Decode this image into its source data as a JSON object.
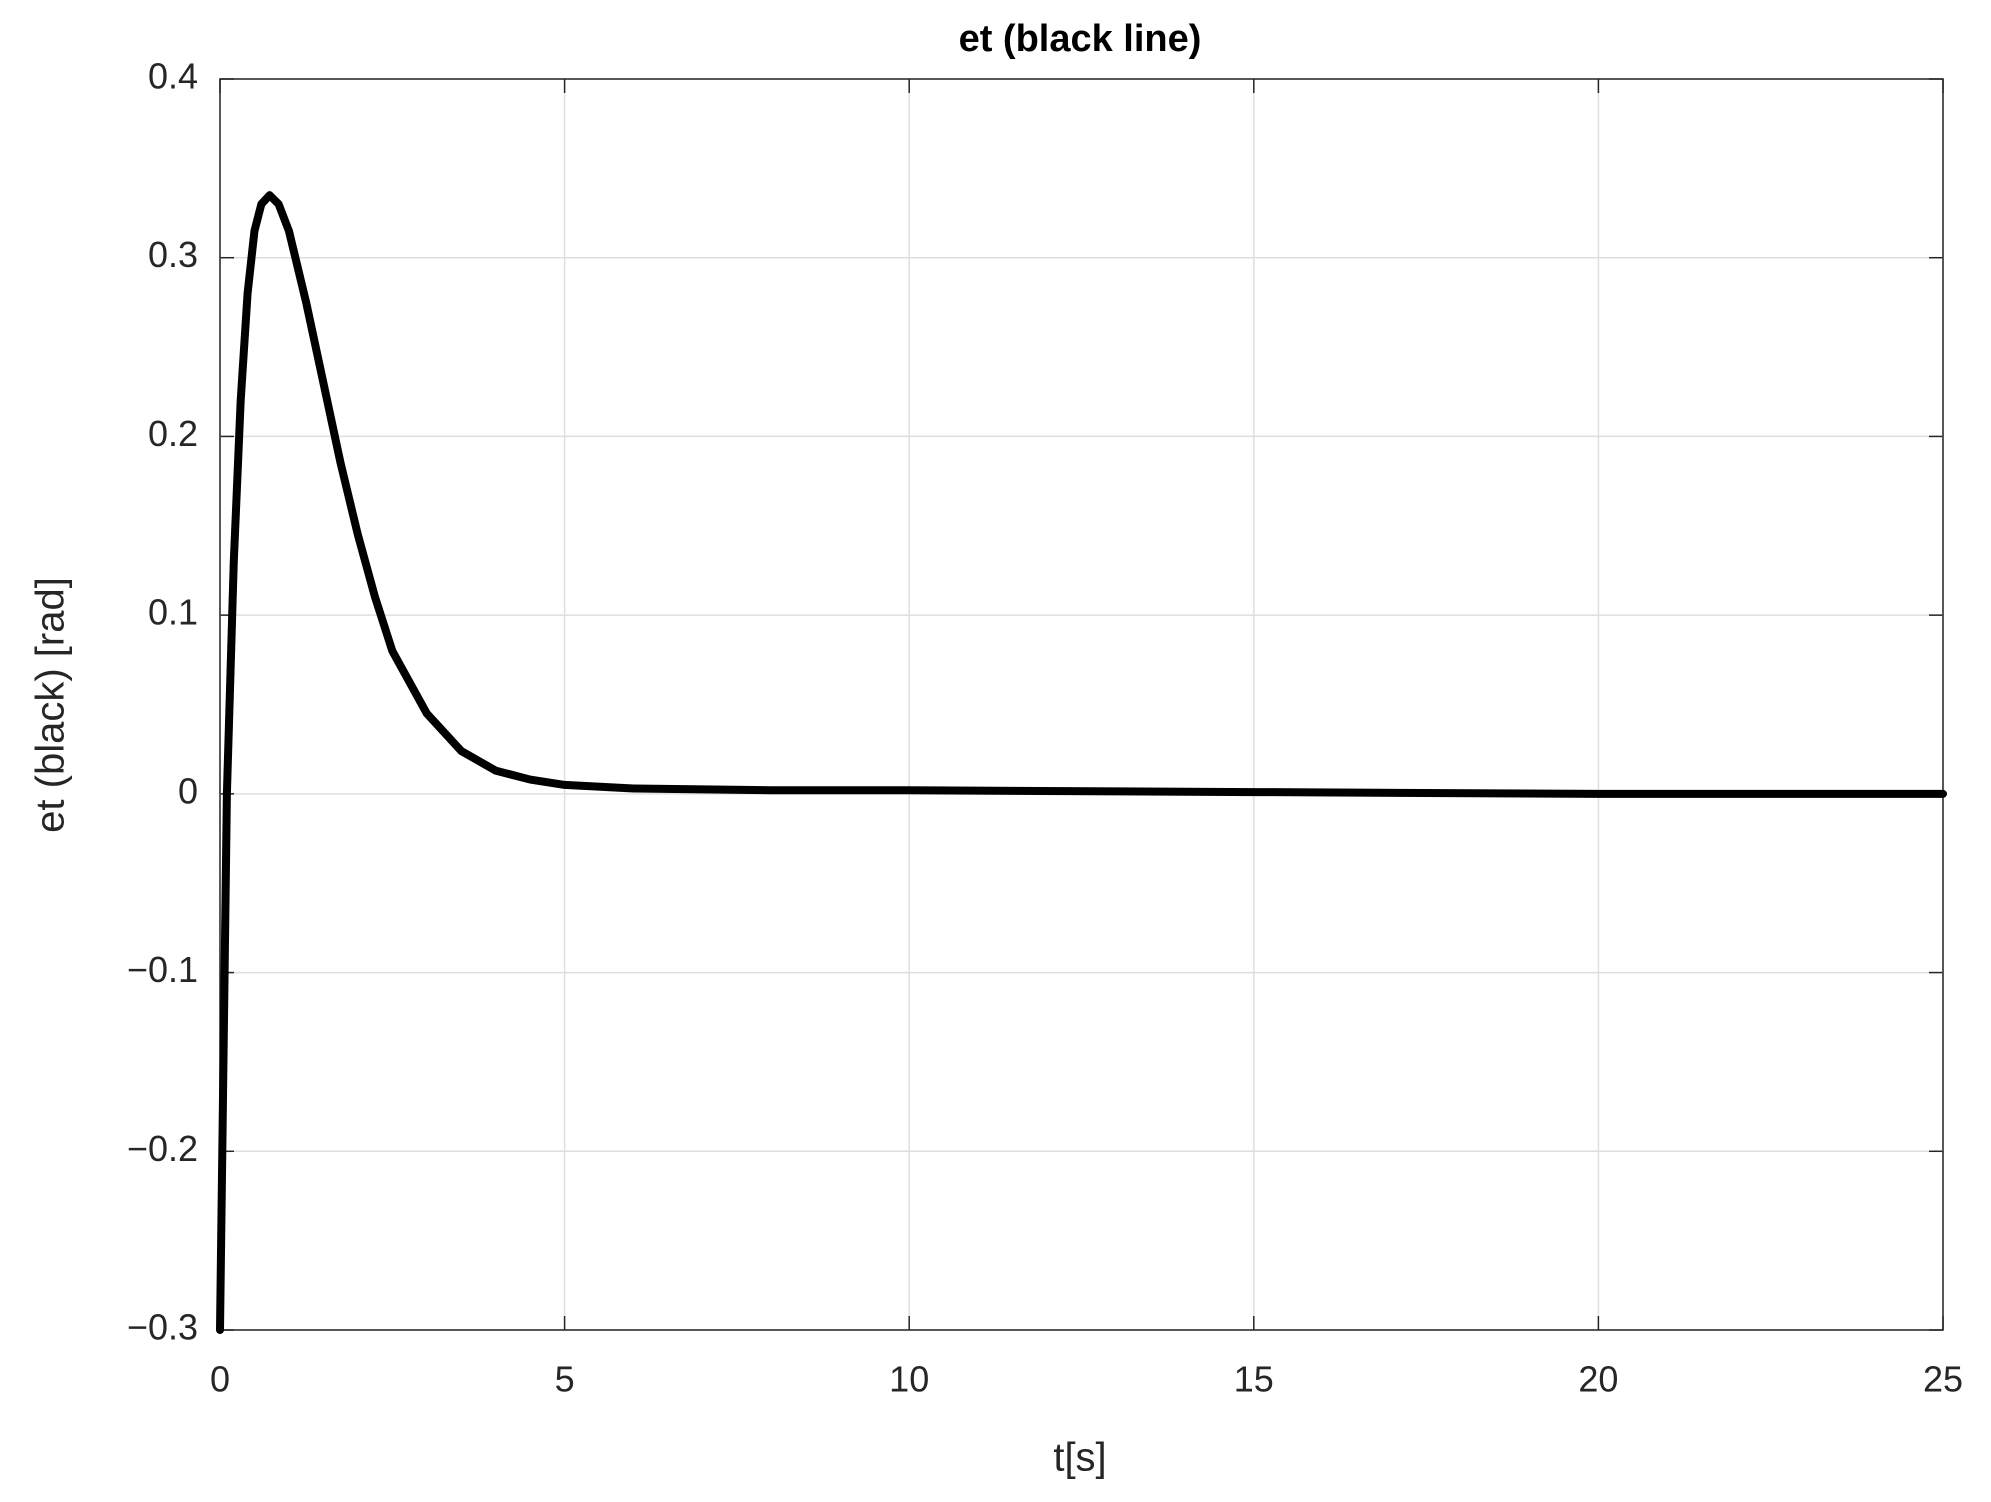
{
  "chart_data": {
    "type": "line",
    "title": "et (black line)",
    "x_label": "t[s]",
    "y_label": "et (black)  [rad]",
    "x": [
      0,
      0.05,
      0.1,
      0.2,
      0.3,
      0.4,
      0.5,
      0.6,
      0.72,
      0.85,
      1.0,
      1.25,
      1.5,
      1.75,
      2.0,
      2.25,
      2.5,
      3.0,
      3.5,
      4.0,
      4.5,
      5,
      6,
      8,
      10,
      15,
      20,
      25
    ],
    "series": [
      {
        "name": "et",
        "color": "#000000",
        "values": [
          -0.3,
          -0.15,
          0,
          0.13,
          0.22,
          0.28,
          0.315,
          0.33,
          0.335,
          0.33,
          0.315,
          0.275,
          0.23,
          0.185,
          0.145,
          0.11,
          0.08,
          0.045,
          0.024,
          0.013,
          0.008,
          0.005,
          0.003,
          0.002,
          0.002,
          0.001,
          0,
          0
        ]
      }
    ],
    "xlim": [
      0,
      25
    ],
    "xticks": [
      0,
      5,
      10,
      15,
      20,
      25
    ],
    "ylim": [
      -0.3,
      0.4
    ],
    "yticks": [
      {
        "value": -0.3,
        "label": "−0.3"
      },
      {
        "value": -0.2,
        "label": "−0.2"
      },
      {
        "value": -0.1,
        "label": "−0.1"
      },
      0,
      0.1,
      0.2,
      0.3,
      0.4
    ],
    "grid": true
  }
}
